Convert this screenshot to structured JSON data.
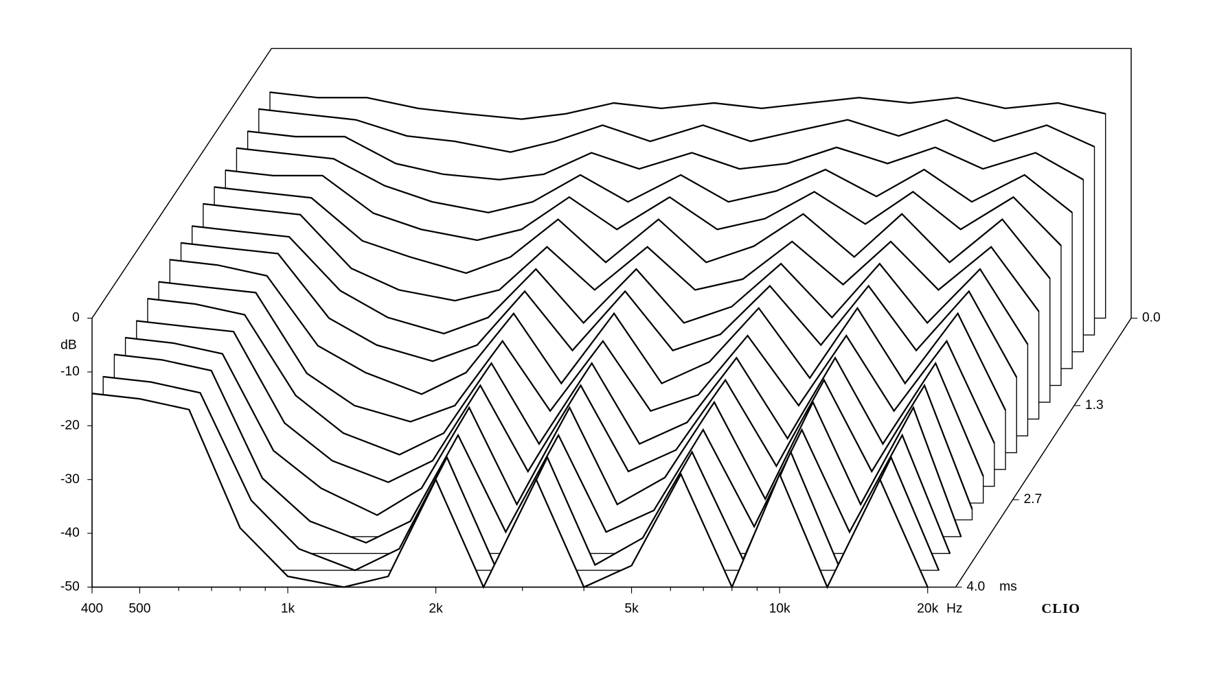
{
  "chart_data": {
    "type": "waterfall",
    "ylabel": "dB",
    "x_unit": "Hz",
    "z_unit": "ms",
    "brand": "CLIO",
    "xlim": [
      400,
      22800
    ],
    "ylim": [
      -50,
      0
    ],
    "zlim": [
      0,
      4
    ],
    "xscale": "log",
    "xticks": [
      400,
      500,
      {
        "value": 1000,
        "label": "1k"
      },
      {
        "value": 2000,
        "label": "2k"
      },
      {
        "value": 5000,
        "label": "5k"
      },
      {
        "value": 10000,
        "label": "10k"
      },
      {
        "value": 20000,
        "label": "20k"
      }
    ],
    "xminorticks": [
      600,
      700,
      800,
      900,
      3000,
      4000,
      6000,
      7000,
      8000,
      9000
    ],
    "yticks": [
      0,
      -10,
      -20,
      -30,
      -40,
      -50
    ],
    "zticks": [
      {
        "value": 0,
        "label": "0.0"
      },
      {
        "value": 1.3,
        "label": "1.3"
      },
      {
        "value": 2.7,
        "label": "2.7"
      },
      {
        "value": 4,
        "label": "4.0"
      }
    ],
    "color": "#000000",
    "frequencies": [
      400,
      500,
      630,
      800,
      1000,
      1300,
      1600,
      2000,
      2500,
      3200,
      4000,
      5000,
      6300,
      8000,
      10000,
      12500,
      16000,
      20000
    ],
    "slices": [
      {
        "time": 0,
        "values": [
          -8,
          -9,
          -9,
          -11,
          -12,
          -13,
          -12,
          -10,
          -11,
          -10,
          -11,
          -10,
          -9,
          -10,
          -9,
          -11,
          -10,
          -12
        ]
      },
      {
        "time": 0.25,
        "values": [
          -8,
          -9,
          -10,
          -13,
          -14,
          -16,
          -14,
          -11,
          -14,
          -11,
          -14,
          -12,
          -10,
          -13,
          -10,
          -14,
          -11,
          -15
        ]
      },
      {
        "time": 0.5,
        "values": [
          -9,
          -10,
          -10,
          -15,
          -17,
          -18,
          -17,
          -13,
          -16,
          -13,
          -16,
          -15,
          -12,
          -15,
          -12,
          -16,
          -13,
          -18
        ]
      },
      {
        "time": 0.75,
        "values": [
          -9,
          -10,
          -11,
          -16,
          -19,
          -21,
          -19,
          -14,
          -19,
          -14,
          -19,
          -17,
          -13,
          -18,
          -13,
          -19,
          -14,
          -21
        ]
      },
      {
        "time": 1,
        "values": [
          -10,
          -11,
          -11,
          -18,
          -21,
          -23,
          -21,
          -15,
          -21,
          -15,
          -21,
          -19,
          -14,
          -20,
          -14,
          -21,
          -15,
          -24
        ]
      },
      {
        "time": 1.25,
        "values": [
          -10,
          -11,
          -12,
          -20,
          -23,
          -26,
          -23,
          -16,
          -24,
          -16,
          -24,
          -21,
          -15,
          -23,
          -15,
          -24,
          -16,
          -27
        ]
      },
      {
        "time": 1.5,
        "values": [
          -10,
          -11,
          -12,
          -22,
          -26,
          -28,
          -26,
          -18,
          -26,
          -18,
          -26,
          -24,
          -17,
          -25,
          -17,
          -26,
          -18,
          -30
        ]
      },
      {
        "time": 1.75,
        "values": [
          -11,
          -12,
          -13,
          -23,
          -28,
          -31,
          -28,
          -19,
          -29,
          -19,
          -29,
          -26,
          -18,
          -28,
          -18,
          -29,
          -19,
          -33
        ]
      },
      {
        "time": 2,
        "values": [
          -11,
          -12,
          -13,
          -25,
          -30,
          -33,
          -30,
          -20,
          -31,
          -20,
          -31,
          -28,
          -19,
          -30,
          -19,
          -31,
          -20,
          -36
        ]
      },
      {
        "time": 2.25,
        "values": [
          -11,
          -12,
          -14,
          -27,
          -32,
          -36,
          -32,
          -21,
          -34,
          -21,
          -34,
          -30,
          -20,
          -33,
          -20,
          -34,
          -21,
          -39
        ]
      },
      {
        "time": 2.5,
        "values": [
          -12,
          -13,
          -14,
          -29,
          -35,
          -38,
          -35,
          -23,
          -36,
          -23,
          -36,
          -33,
          -22,
          -35,
          -22,
          -36,
          -23,
          -42
        ]
      },
      {
        "time": 2.75,
        "values": [
          -12,
          -13,
          -15,
          -30,
          -37,
          -41,
          -37,
          -24,
          -39,
          -24,
          -39,
          -35,
          -23,
          -38,
          -23,
          -39,
          -24,
          -45
        ]
      },
      {
        "time": 3,
        "values": [
          -13,
          -14,
          -15,
          -32,
          -39,
          -43,
          -39,
          -25,
          -41,
          -25,
          -41,
          -37,
          -24,
          -40,
          -24,
          -41,
          -25,
          -48
        ]
      },
      {
        "time": 3.25,
        "values": [
          -13,
          -14,
          -16,
          -34,
          -41,
          -46,
          -41,
          -26,
          -44,
          -26,
          -44,
          -39,
          -25,
          -43,
          -25,
          -44,
          -26,
          -50
        ]
      },
      {
        "time": 3.5,
        "values": [
          -13,
          -14,
          -16,
          -36,
          -44,
          -48,
          -44,
          -28,
          -46,
          -28,
          -46,
          -42,
          -27,
          -45,
          -27,
          -46,
          -28,
          -50
        ]
      },
      {
        "time": 3.75,
        "values": [
          -14,
          -15,
          -17,
          -37,
          -46,
          -50,
          -46,
          -29,
          -49,
          -29,
          -49,
          -44,
          -28,
          -48,
          -28,
          -49,
          -29,
          -50
        ]
      },
      {
        "time": 4,
        "values": [
          -14,
          -15,
          -17,
          -39,
          -48,
          -50,
          -48,
          -30,
          -50,
          -30,
          -50,
          -46,
          -29,
          -50,
          -29,
          -50,
          -30,
          -50
        ]
      }
    ]
  }
}
